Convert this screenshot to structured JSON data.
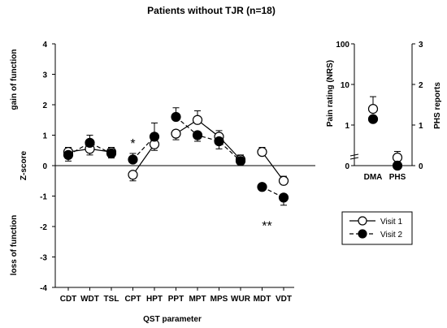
{
  "chart_data": [
    {
      "type": "line",
      "title": "Patients without TJR (n=18)",
      "xlabel": "QST parameter",
      "ylabel": "Z-score",
      "ylabel_top": "gain of function",
      "ylabel_bottom": "loss of function",
      "ylim": [
        -4,
        4
      ],
      "yticks": [
        -4,
        -3,
        -2,
        -1,
        0,
        1,
        2,
        3,
        4
      ],
      "categories": [
        "CDT",
        "WDT",
        "TSL",
        "CPT",
        "HPT",
        "PPT",
        "MPT",
        "MPS",
        "WUR",
        "MDT",
        "VDT"
      ],
      "groups": [
        [
          "CDT",
          "WDT",
          "TSL"
        ],
        [
          "CPT",
          "HPT"
        ],
        [
          "PPT",
          "MPT",
          "MPS",
          "WUR"
        ],
        [
          "MDT",
          "VDT"
        ]
      ],
      "series": [
        {
          "name": "Visit 1",
          "marker": "open-circle",
          "line": "solid",
          "values": [
            0.45,
            0.55,
            0.45,
            -0.3,
            0.7,
            1.05,
            1.5,
            0.95,
            0.2,
            0.45,
            -0.5
          ],
          "error": [
            0.15,
            0.2,
            0.15,
            0.2,
            0.2,
            0.2,
            0.3,
            0.2,
            0.15,
            0.15,
            0.15
          ]
        },
        {
          "name": "Visit 2",
          "marker": "filled-circle",
          "line": "dashed",
          "values": [
            0.35,
            0.75,
            0.4,
            0.2,
            0.95,
            1.6,
            1.0,
            0.8,
            0.15,
            -0.7,
            -1.05
          ],
          "error": [
            0.2,
            0.25,
            0.15,
            0.2,
            0.45,
            0.3,
            0.2,
            0.25,
            0.1,
            0.1,
            0.25
          ]
        }
      ],
      "annotations": [
        {
          "text": "*",
          "category": "CPT",
          "y": 0.8
        },
        {
          "text": "**",
          "category": "MDT",
          "y": -1.9
        }
      ],
      "legend": {
        "placement": "lower-right",
        "entries": [
          "Visit 1",
          "Visit 2"
        ]
      }
    },
    {
      "type": "scatter",
      "categories": [
        "DMA",
        "PHS"
      ],
      "left_axis": {
        "label": "Pain rating (NRS)",
        "scale": "log",
        "ticks": [
          "100",
          "10",
          "1",
          "0"
        ]
      },
      "right_axis": {
        "label": "PHS reports",
        "scale": "linear",
        "ylim": [
          0,
          3
        ],
        "ticks": [
          "0",
          "1",
          "2",
          "3"
        ]
      },
      "series": [
        {
          "name": "Visit 1",
          "marker": "open-circle",
          "values": [
            {
              "category": "DMA",
              "y": 2.5,
              "axis": "left",
              "err": 2.5
            },
            {
              "category": "PHS",
              "y": 0.2,
              "axis": "right",
              "err": 0.15
            }
          ]
        },
        {
          "name": "Visit 2",
          "marker": "filled-circle",
          "values": [
            {
              "category": "DMA",
              "y": 1.4,
              "axis": "left",
              "err": 0
            },
            {
              "category": "PHS",
              "y": 0,
              "axis": "right",
              "err": 0
            }
          ]
        }
      ]
    }
  ]
}
